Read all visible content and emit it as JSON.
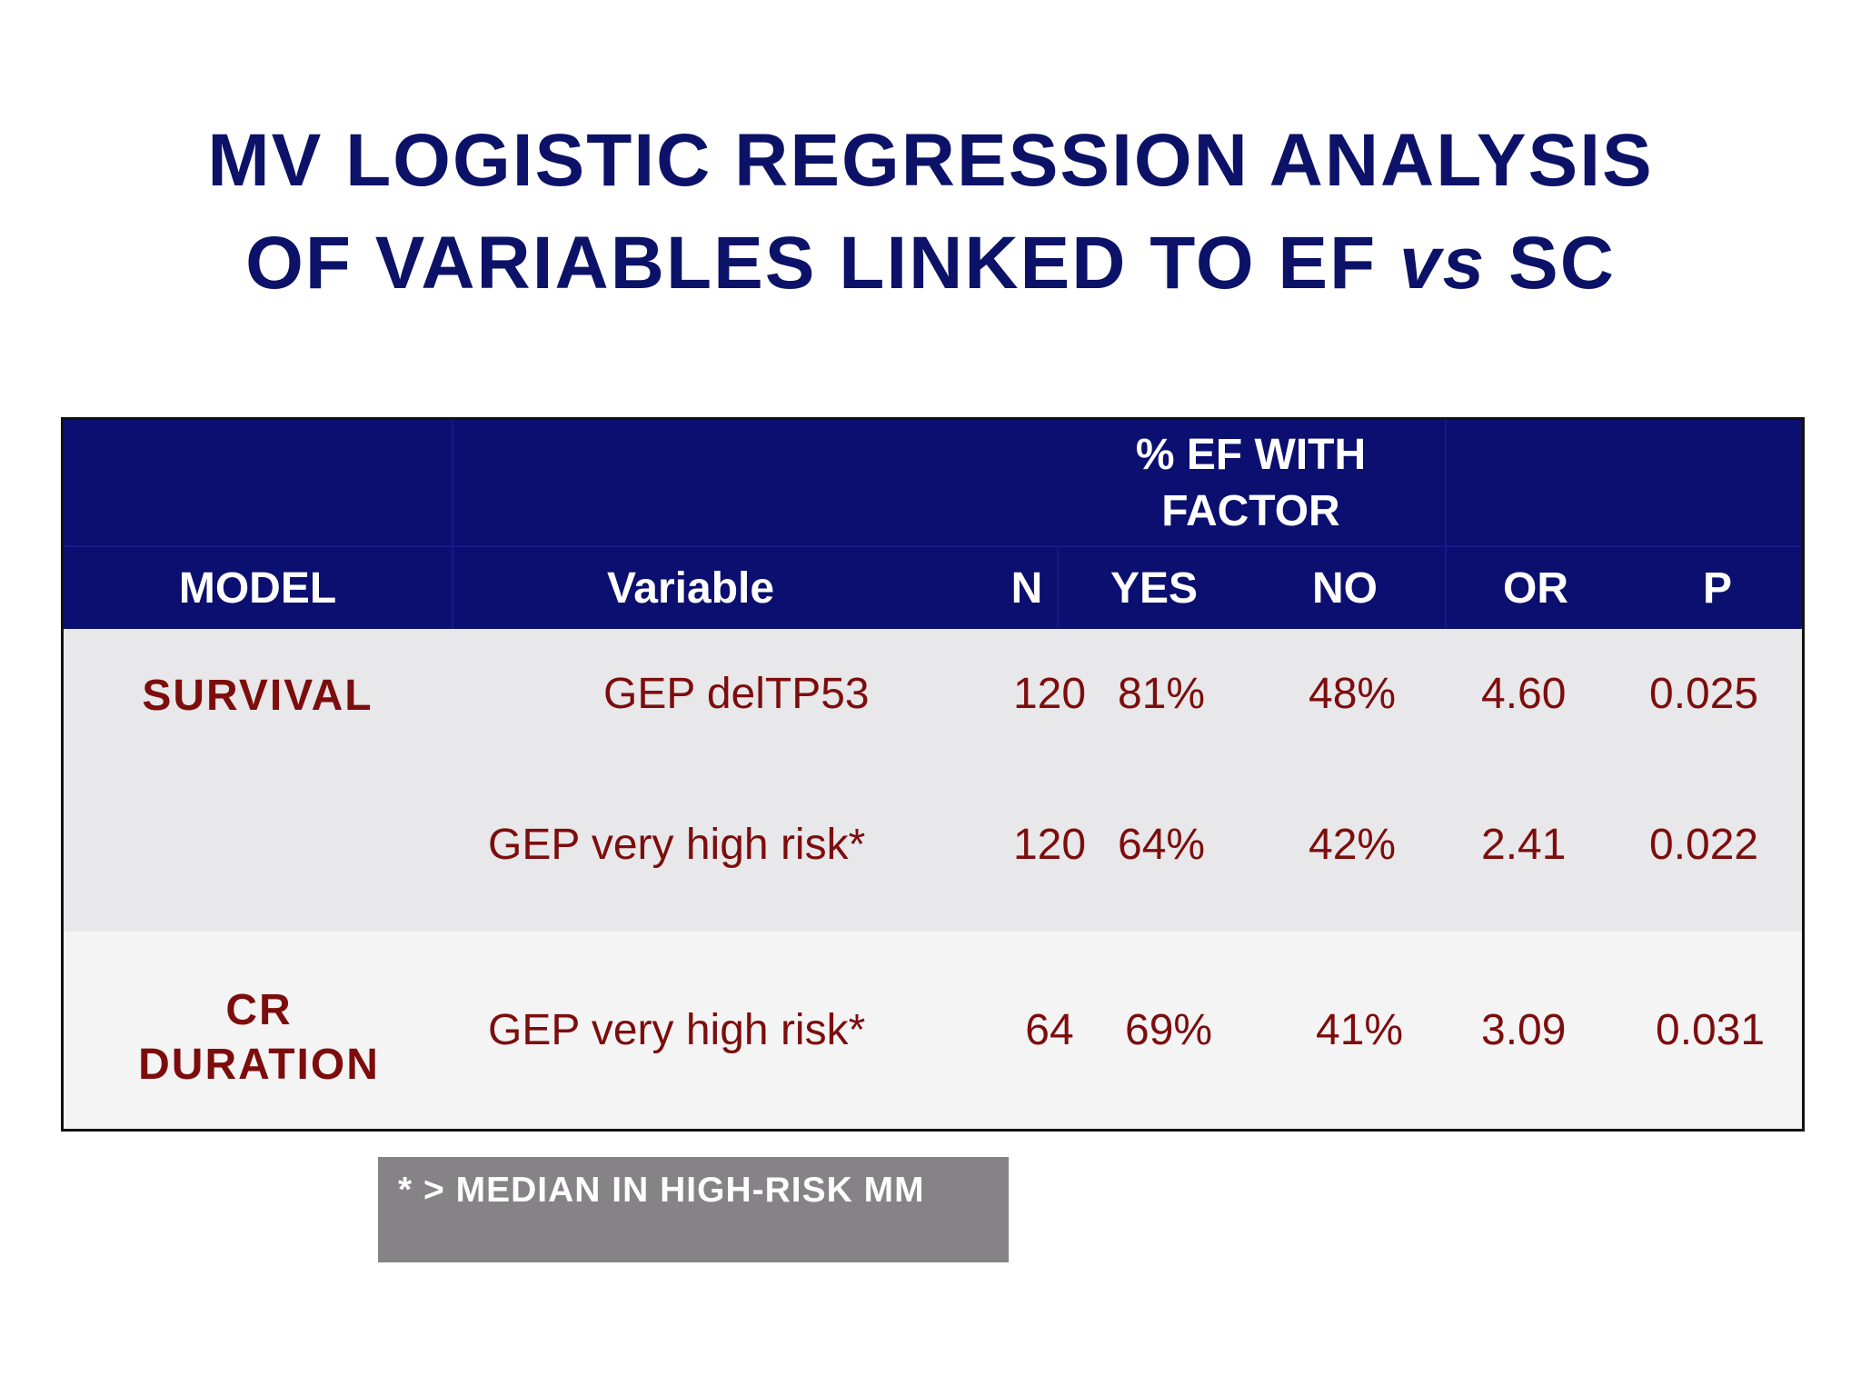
{
  "title": {
    "line1": "MV LOGISTIC REGRESSION ANALYSIS",
    "line2_prefix": "OF VARIABLES LINKED TO EF",
    "line2_italic": "vs",
    "line2_suffix": "SC"
  },
  "table": {
    "group_header": "% EF WITH FACTOR",
    "columns": [
      "MODEL",
      "Variable",
      "N",
      "YES",
      "NO",
      "OR",
      "P"
    ],
    "rows": [
      {
        "model": "SURVIVAL",
        "variable": "GEP delTP53",
        "n": "120",
        "yes": "81%",
        "no": "48%",
        "or": "4.60",
        "p": "0.025"
      },
      {
        "model": "",
        "variable": "GEP very high risk*",
        "n": "120",
        "yes": "64%",
        "no": "42%",
        "or": "2.41",
        "p": "0.022"
      },
      {
        "model": "CR DURATION",
        "variable": "GEP very high risk*",
        "n": "64",
        "yes": "69%",
        "no": "41%",
        "or": "3.09",
        "p": "0.031"
      }
    ]
  },
  "footnote": "* > MEDIAN IN HIGH-RISK MM",
  "colors": {
    "title": "#0c1267",
    "header_bg": "#0b0f6f",
    "value_text": "#7d0d0d",
    "footnote_bg": "#858385"
  }
}
